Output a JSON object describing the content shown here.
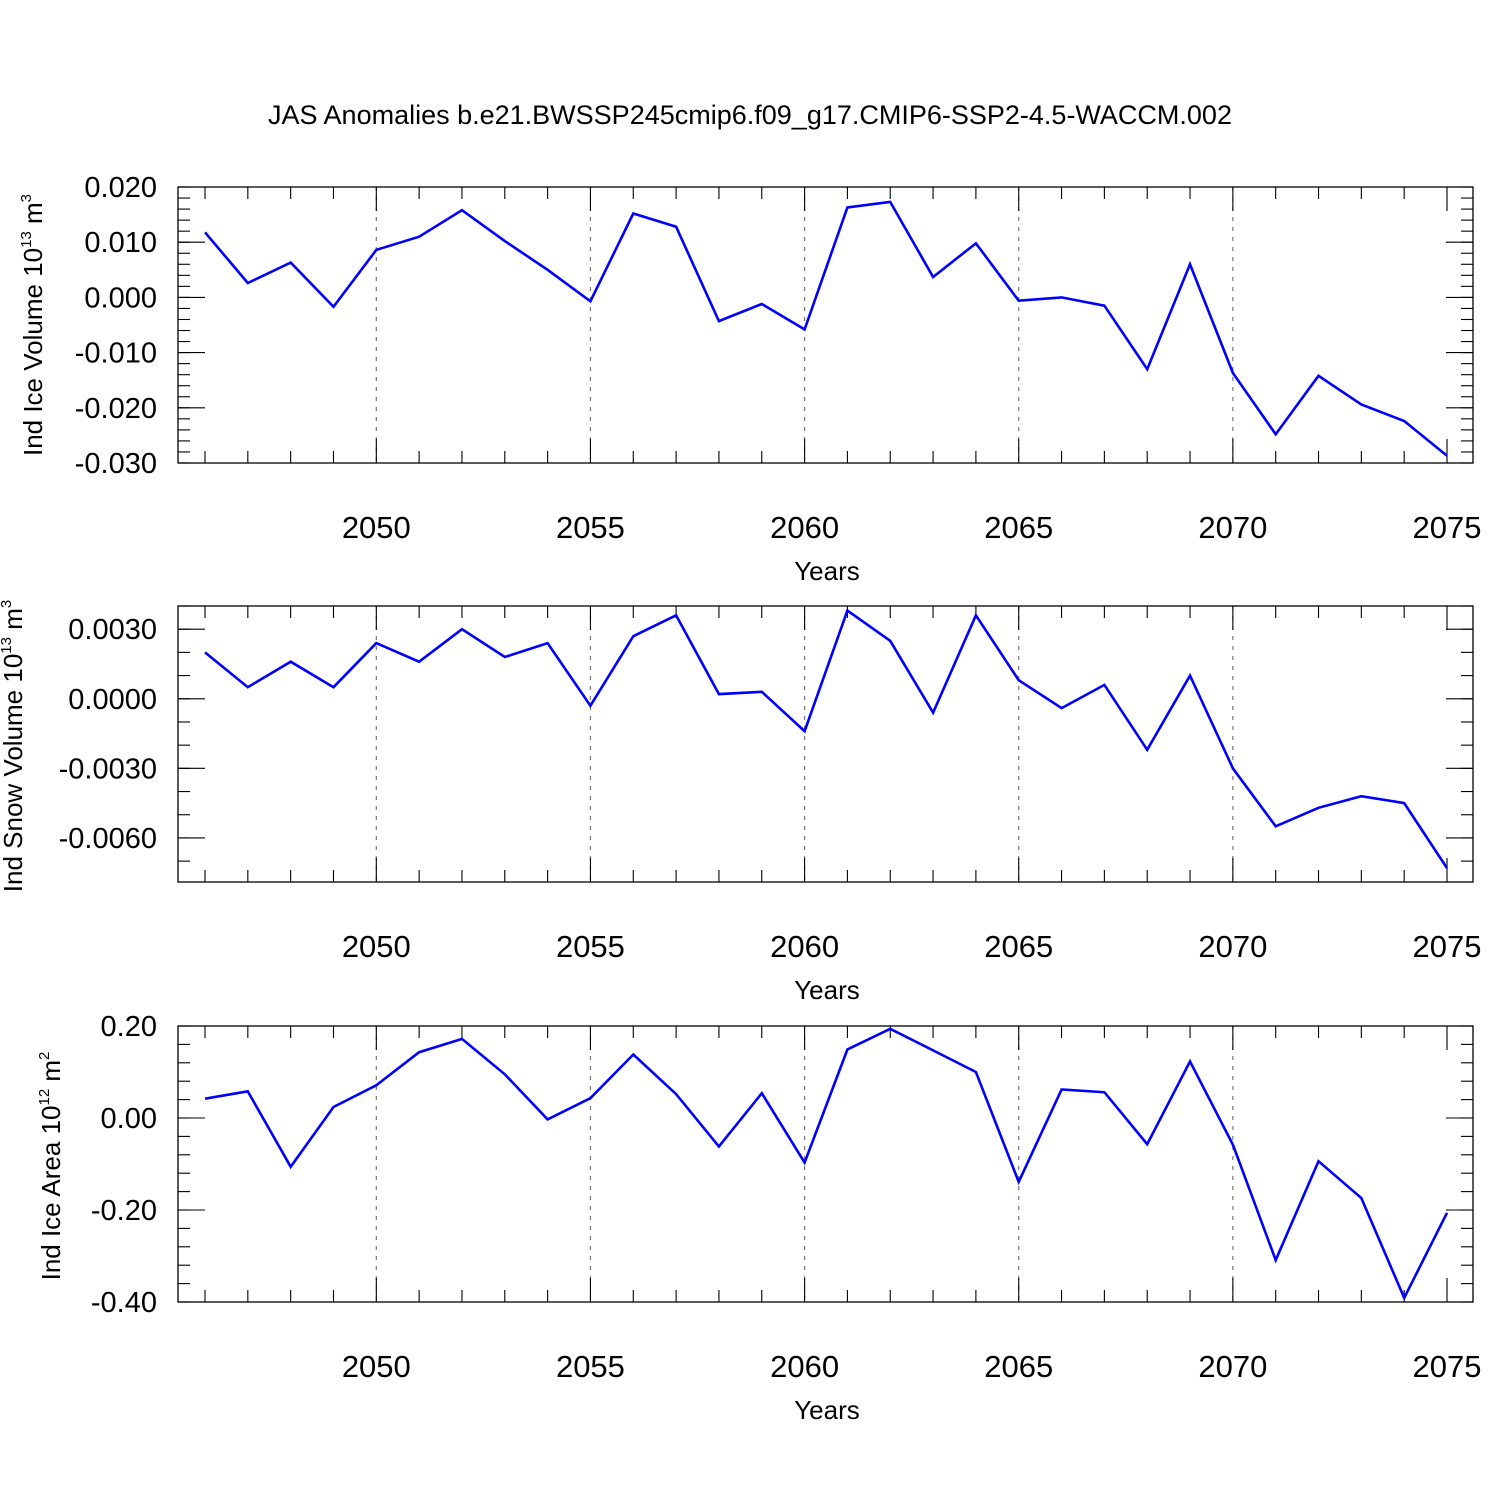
{
  "title": "JAS Anomalies b.e21.BWSSP245cmip6.f09_g17.CMIP6-SSP2-4.5-WACCM.002",
  "line_color": "#0000ff",
  "grid_color": "#777777",
  "chart_data": [
    {
      "type": "line",
      "ylabel": {
        "prefix": "Ind Ice Volume 10",
        "exp": "13",
        "unit": " m",
        "unit_exp": "3"
      },
      "xlabel": "Years",
      "xlim": [
        2046,
        2075
      ],
      "ylim": [
        -0.03,
        0.02
      ],
      "yticks": [
        0.02,
        0.01,
        0.0,
        -0.01,
        -0.02,
        -0.03
      ],
      "ytick_labels": [
        "0.020",
        "0.010",
        "0.000",
        "-0.010",
        "-0.020",
        "-0.030"
      ],
      "yminor_step": 0.002,
      "xticks": [
        2050,
        2055,
        2060,
        2065,
        2070,
        2075
      ],
      "xtick_labels": [
        "2050",
        "2055",
        "2060",
        "2065",
        "2070",
        "2075"
      ],
      "grid": "vertical dashed at major x ticks",
      "x": [
        2046,
        2047,
        2048,
        2049,
        2050,
        2051,
        2052,
        2053,
        2054,
        2055,
        2056,
        2057,
        2058,
        2059,
        2060,
        2061,
        2062,
        2063,
        2064,
        2065,
        2066,
        2067,
        2068,
        2069,
        2070,
        2071,
        2072,
        2073,
        2074,
        2075
      ],
      "y": [
        0.0118,
        0.0026,
        0.0063,
        -0.0017,
        0.0086,
        0.011,
        0.0158,
        0.0102,
        0.005,
        -0.0007,
        0.0152,
        0.0128,
        -0.0043,
        -0.0012,
        -0.0058,
        0.0163,
        0.0173,
        0.0037,
        0.0098,
        -0.0006,
        0.0,
        -0.0015,
        -0.013,
        0.006,
        -0.0137,
        -0.0248,
        -0.0142,
        -0.0194,
        -0.0224,
        -0.0287
      ]
    },
    {
      "type": "line",
      "ylabel": {
        "prefix": "Ind Snow Volume 10",
        "exp": "13",
        "unit": " m",
        "unit_exp": "3"
      },
      "xlabel": "Years",
      "xlim": [
        2046,
        2075
      ],
      "ylim": [
        -0.0079,
        0.004
      ],
      "yticks": [
        0.003,
        0.0,
        -0.003,
        -0.006
      ],
      "ytick_labels": [
        "0.0030",
        "0.0000",
        "-0.0030",
        "-0.0060"
      ],
      "yminor_step": 0.001,
      "xticks": [
        2050,
        2055,
        2060,
        2065,
        2070,
        2075
      ],
      "xtick_labels": [
        "2050",
        "2055",
        "2060",
        "2065",
        "2070",
        "2075"
      ],
      "grid": "vertical dashed at major x ticks",
      "x": [
        2046,
        2047,
        2048,
        2049,
        2050,
        2051,
        2052,
        2053,
        2054,
        2055,
        2056,
        2057,
        2058,
        2059,
        2060,
        2061,
        2062,
        2063,
        2064,
        2065,
        2066,
        2067,
        2068,
        2069,
        2070,
        2071,
        2072,
        2073,
        2074,
        2075
      ],
      "y": [
        0.002,
        0.0005,
        0.0016,
        0.0005,
        0.0024,
        0.0016,
        0.003,
        0.0018,
        0.0024,
        -0.0003,
        0.0027,
        0.0036,
        0.0002,
        0.0003,
        -0.0014,
        0.0038,
        0.0025,
        -0.0006,
        0.0036,
        0.0008,
        -0.0004,
        0.0006,
        -0.0022,
        0.001,
        -0.003,
        -0.0055,
        -0.0047,
        -0.0042,
        -0.0045,
        -0.0073
      ]
    },
    {
      "type": "line",
      "ylabel": {
        "prefix": "Ind Ice Area 10",
        "exp": "12",
        "unit": " m",
        "unit_exp": "2"
      },
      "xlabel": "Years",
      "xlim": [
        2046,
        2075
      ],
      "ylim": [
        -0.4,
        0.2
      ],
      "yticks": [
        0.2,
        0.0,
        -0.2,
        -0.4
      ],
      "ytick_labels": [
        "0.20",
        "0.00",
        "-0.20",
        "-0.40"
      ],
      "yminor_step": 0.04,
      "xticks": [
        2050,
        2055,
        2060,
        2065,
        2070,
        2075
      ],
      "xtick_labels": [
        "2050",
        "2055",
        "2060",
        "2065",
        "2070",
        "2075"
      ],
      "grid": "vertical dashed at major x ticks",
      "x": [
        2046,
        2047,
        2048,
        2049,
        2050,
        2051,
        2052,
        2053,
        2054,
        2055,
        2056,
        2057,
        2058,
        2059,
        2060,
        2061,
        2062,
        2063,
        2064,
        2065,
        2066,
        2067,
        2068,
        2069,
        2070,
        2071,
        2072,
        2073,
        2074,
        2075
      ],
      "y": [
        0.042,
        0.058,
        -0.106,
        0.024,
        0.071,
        0.143,
        0.172,
        0.095,
        -0.003,
        0.043,
        0.138,
        0.052,
        -0.062,
        0.054,
        -0.097,
        0.149,
        0.194,
        0.147,
        0.1,
        -0.139,
        0.062,
        0.056,
        -0.057,
        0.123,
        -0.058,
        -0.309,
        -0.094,
        -0.174,
        -0.391,
        -0.206
      ]
    }
  ]
}
